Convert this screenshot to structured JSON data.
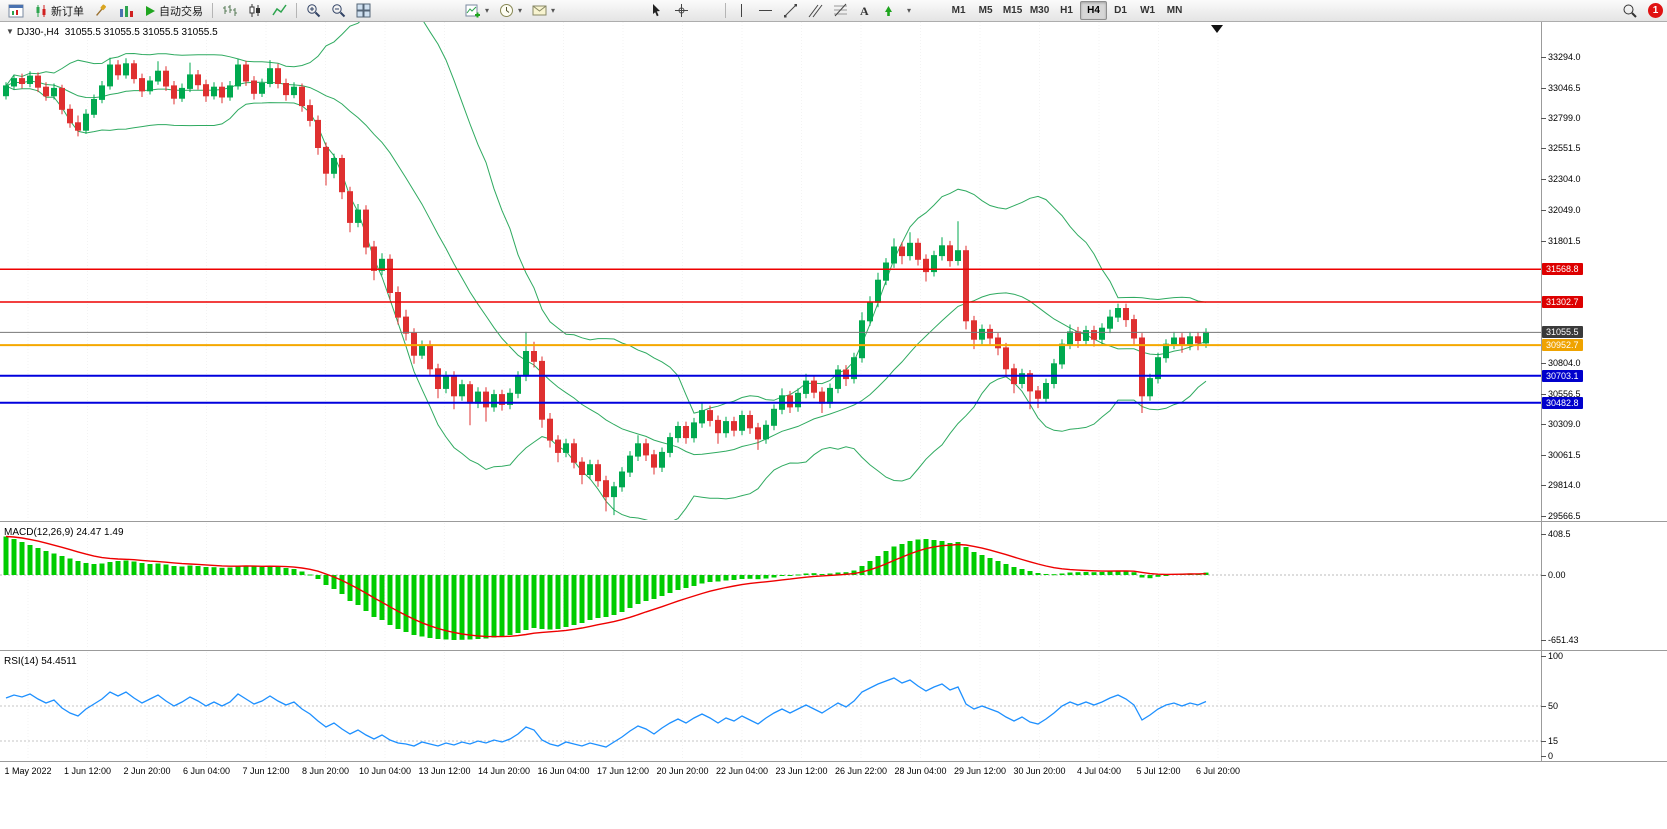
{
  "toolbar": {
    "new_order": "新订单",
    "auto_trading": "自动交易",
    "timeframes": [
      "M1",
      "M5",
      "M15",
      "M30",
      "H1",
      "H4",
      "D1",
      "W1",
      "MN"
    ],
    "active_timeframe": "H4",
    "notification_count": "1"
  },
  "chart": {
    "symbol_label": "DJ30-,H4",
    "ohlc_label": "31055.5 31055.5 31055.5 31055.5"
  },
  "price_axis": {
    "ticks": [
      {
        "label": "33294.0",
        "value": 33294.0
      },
      {
        "label": "33046.5",
        "value": 33046.5
      },
      {
        "label": "32799.0",
        "value": 32799.0
      },
      {
        "label": "32551.5",
        "value": 32551.5
      },
      {
        "label": "32304.0",
        "value": 32304.0
      },
      {
        "label": "32049.0",
        "value": 32049.0
      },
      {
        "label": "31801.5",
        "value": 31801.5
      },
      {
        "label": "30804.0",
        "value": 30804.0
      },
      {
        "label": "30556.5",
        "value": 30556.5
      },
      {
        "label": "30309.0",
        "value": 30309.0
      },
      {
        "label": "30061.5",
        "value": 30061.5
      },
      {
        "label": "29814.0",
        "value": 29814.0
      },
      {
        "label": "29566.5",
        "value": 29566.5
      }
    ],
    "badges": [
      {
        "label": "31568.8",
        "value": 31568.8,
        "color": "#dd0000"
      },
      {
        "label": "31302.7",
        "value": 31302.7,
        "color": "#dd0000"
      },
      {
        "label": "31055.5",
        "value": 31055.5,
        "color": "#3a3a3a"
      },
      {
        "label": "30952.7",
        "value": 30952.7,
        "color": "#efa300"
      },
      {
        "label": "30703.1",
        "value": 30703.1,
        "color": "#0000cc"
      },
      {
        "label": "30482.8",
        "value": 30482.8,
        "color": "#0000cc"
      }
    ]
  },
  "indicators": {
    "macd_label": "MACD(12,26,9)",
    "macd_values": "24.47 1.49",
    "macd_axis": [
      {
        "label": "408.5",
        "value": 408.5
      },
      {
        "label": "0.00",
        "value": 0
      },
      {
        "label": "-651.43",
        "value": -651.43
      }
    ],
    "rsi_label": "RSI(14)",
    "rsi_value": "54.4511",
    "rsi_axis": [
      {
        "label": "100",
        "value": 100
      },
      {
        "label": "50",
        "value": 50
      },
      {
        "label": "15",
        "value": 15
      },
      {
        "label": "0",
        "value": 0
      }
    ],
    "rsi_levels": [
      50,
      15
    ]
  },
  "time_axis": {
    "labels": [
      "1 May 2022",
      "1 Jun 12:00",
      "2 Jun 20:00",
      "6 Jun 04:00",
      "7 Jun 12:00",
      "8 Jun 20:00",
      "10 Jun 04:00",
      "13 Jun 12:00",
      "14 Jun 20:00",
      "16 Jun 04:00",
      "17 Jun 12:00",
      "20 Jun 20:00",
      "22 Jun 04:00",
      "23 Jun 12:00",
      "26 Jun 22:00",
      "28 Jun 04:00",
      "29 Jun 12:00",
      "30 Jun 20:00",
      "4 Jul 04:00",
      "5 Jul 12:00",
      "6 Jul 20:00"
    ]
  },
  "chart_data": {
    "type": "candlestick",
    "symbol": "DJ30-",
    "timeframe": "H4",
    "colors": {
      "up": "#00a94f",
      "down": "#df3030",
      "bollinger": "#2faa60",
      "macd_hist": "#00cc00",
      "macd_signal": "#ee0000",
      "rsi": "#1e90ff"
    },
    "h_lines": [
      {
        "name": "resistance-1",
        "price": 31568.8,
        "color": "#ee0000",
        "w": 1.5
      },
      {
        "name": "resistance-2",
        "price": 31302.7,
        "color": "#ee0000",
        "w": 1.5
      },
      {
        "name": "current-price",
        "price": 31055.5,
        "color": "#777777",
        "w": 1
      },
      {
        "name": "pivot",
        "price": 30952.7,
        "color": "#f5a800",
        "w": 2
      },
      {
        "name": "support-1",
        "price": 30703.1,
        "color": "#0000dd",
        "w": 2
      },
      {
        "name": "support-2",
        "price": 30482.8,
        "color": "#0000dd",
        "w": 2
      }
    ],
    "bollinger": {
      "period": 20,
      "deviation": 2
    },
    "candles": [
      [
        32980,
        33090,
        32950,
        33060
      ],
      [
        33060,
        33150,
        33030,
        33120
      ],
      [
        33120,
        33160,
        33040,
        33080
      ],
      [
        33080,
        33180,
        33050,
        33140
      ],
      [
        33140,
        33170,
        33010,
        33050
      ],
      [
        33050,
        33090,
        32940,
        32980
      ],
      [
        32980,
        33080,
        32950,
        33040
      ],
      [
        33040,
        33070,
        32830,
        32870
      ],
      [
        32870,
        32910,
        32720,
        32760
      ],
      [
        32760,
        32820,
        32650,
        32700
      ],
      [
        32700,
        32870,
        32670,
        32830
      ],
      [
        32830,
        32990,
        32800,
        32950
      ],
      [
        32950,
        33100,
        32920,
        33060
      ],
      [
        33060,
        33290,
        33030,
        33230
      ],
      [
        33230,
        33270,
        33110,
        33150
      ],
      [
        33150,
        33285,
        33120,
        33240
      ],
      [
        33240,
        33270,
        33080,
        33120
      ],
      [
        33120,
        33160,
        32970,
        33020
      ],
      [
        33020,
        33140,
        32990,
        33100
      ],
      [
        33100,
        33260,
        33070,
        33180
      ],
      [
        33180,
        33220,
        33020,
        33060
      ],
      [
        33060,
        33100,
        32910,
        32960
      ],
      [
        32960,
        33080,
        32930,
        33040
      ],
      [
        33040,
        33250,
        33010,
        33150
      ],
      [
        33150,
        33190,
        33030,
        33070
      ],
      [
        33070,
        33110,
        32930,
        32980
      ],
      [
        32980,
        33090,
        32950,
        33050
      ],
      [
        33050,
        33090,
        32920,
        32970
      ],
      [
        32970,
        33100,
        32940,
        33060
      ],
      [
        33060,
        33280,
        33030,
        33230
      ],
      [
        33230,
        33265,
        33060,
        33100
      ],
      [
        33100,
        33140,
        32950,
        33000
      ],
      [
        33000,
        33120,
        32970,
        33080
      ],
      [
        33080,
        33270,
        33050,
        33200
      ],
      [
        33200,
        33240,
        33040,
        33080
      ],
      [
        33080,
        33120,
        32940,
        32990
      ],
      [
        32990,
        33090,
        32960,
        33050
      ],
      [
        33050,
        33080,
        32850,
        32900
      ],
      [
        32900,
        32950,
        32730,
        32780
      ],
      [
        32780,
        32820,
        32500,
        32560
      ],
      [
        32560,
        32600,
        32250,
        32350
      ],
      [
        32350,
        32510,
        32310,
        32470
      ],
      [
        32470,
        32500,
        32140,
        32200
      ],
      [
        32200,
        32240,
        31870,
        31950
      ],
      [
        31950,
        32100,
        31910,
        32050
      ],
      [
        32050,
        32090,
        31690,
        31750
      ],
      [
        31750,
        31800,
        31480,
        31560
      ],
      [
        31560,
        31700,
        31520,
        31650
      ],
      [
        31650,
        31690,
        31320,
        31380
      ],
      [
        31380,
        31430,
        31120,
        31180
      ],
      [
        31180,
        31240,
        30990,
        31050
      ],
      [
        31050,
        31090,
        30800,
        30870
      ],
      [
        30870,
        30990,
        30840,
        30950
      ],
      [
        30950,
        30990,
        30710,
        30760
      ],
      [
        30760,
        30800,
        30520,
        30600
      ],
      [
        30600,
        30740,
        30560,
        30700
      ],
      [
        30700,
        30740,
        30430,
        30540
      ],
      [
        30540,
        30670,
        30500,
        30630
      ],
      [
        30630,
        30660,
        30300,
        30480
      ],
      [
        30480,
        30610,
        30440,
        30570
      ],
      [
        30570,
        30610,
        30330,
        30450
      ],
      [
        30450,
        30590,
        30410,
        30550
      ],
      [
        30550,
        30590,
        30420,
        30470
      ],
      [
        30470,
        30600,
        30430,
        30560
      ],
      [
        30560,
        30740,
        30520,
        30700
      ],
      [
        30700,
        31060,
        30660,
        30900
      ],
      [
        30900,
        30980,
        30770,
        30820
      ],
      [
        30820,
        30860,
        30280,
        30350
      ],
      [
        30350,
        30400,
        30120,
        30180
      ],
      [
        30180,
        30220,
        30000,
        30080
      ],
      [
        30080,
        30190,
        30040,
        30150
      ],
      [
        30150,
        30190,
        29950,
        30000
      ],
      [
        30000,
        30040,
        29820,
        29900
      ],
      [
        29900,
        30020,
        29860,
        29980
      ],
      [
        29980,
        30020,
        29800,
        29850
      ],
      [
        29850,
        29890,
        29600,
        29720
      ],
      [
        29720,
        29840,
        29570,
        29800
      ],
      [
        29800,
        29960,
        29760,
        29920
      ],
      [
        29920,
        30090,
        29880,
        30050
      ],
      [
        30050,
        30220,
        30010,
        30150
      ],
      [
        30150,
        30190,
        30010,
        30060
      ],
      [
        30060,
        30100,
        29900,
        29960
      ],
      [
        29960,
        30120,
        29920,
        30080
      ],
      [
        30080,
        30240,
        30040,
        30200
      ],
      [
        30200,
        30330,
        30160,
        30290
      ],
      [
        30290,
        30330,
        30150,
        30200
      ],
      [
        30200,
        30360,
        30160,
        30320
      ],
      [
        30320,
        30480,
        30280,
        30420
      ],
      [
        30420,
        30460,
        30290,
        30340
      ],
      [
        30340,
        30380,
        30150,
        30240
      ],
      [
        30240,
        30370,
        30200,
        30330
      ],
      [
        30330,
        30370,
        30210,
        30260
      ],
      [
        30260,
        30420,
        30220,
        30380
      ],
      [
        30380,
        30420,
        30230,
        30280
      ],
      [
        30280,
        30320,
        30100,
        30190
      ],
      [
        30190,
        30340,
        30150,
        30300
      ],
      [
        30300,
        30470,
        30260,
        30430
      ],
      [
        30430,
        30600,
        30390,
        30540
      ],
      [
        30540,
        30580,
        30400,
        30450
      ],
      [
        30450,
        30600,
        30410,
        30560
      ],
      [
        30560,
        30720,
        30520,
        30660
      ],
      [
        30660,
        30700,
        30520,
        30570
      ],
      [
        30570,
        30610,
        30400,
        30480
      ],
      [
        30480,
        30640,
        30440,
        30600
      ],
      [
        30600,
        30790,
        30560,
        30750
      ],
      [
        30750,
        30790,
        30620,
        30680
      ],
      [
        30680,
        30890,
        30640,
        30850
      ],
      [
        30850,
        31220,
        30810,
        31150
      ],
      [
        31150,
        31350,
        31110,
        31300
      ],
      [
        31300,
        31540,
        31260,
        31480
      ],
      [
        31480,
        31660,
        31440,
        31620
      ],
      [
        31620,
        31820,
        31580,
        31750
      ],
      [
        31750,
        31790,
        31610,
        31680
      ],
      [
        31680,
        31870,
        31640,
        31780
      ],
      [
        31780,
        31820,
        31600,
        31650
      ],
      [
        31650,
        31690,
        31470,
        31550
      ],
      [
        31550,
        31720,
        31510,
        31680
      ],
      [
        31680,
        31830,
        31640,
        31760
      ],
      [
        31760,
        31800,
        31590,
        31640
      ],
      [
        31640,
        31960,
        31600,
        31720
      ],
      [
        31720,
        31760,
        31080,
        31150
      ],
      [
        31150,
        31190,
        30920,
        31000
      ],
      [
        31000,
        31120,
        30960,
        31080
      ],
      [
        31080,
        31120,
        30960,
        31010
      ],
      [
        31010,
        31050,
        30870,
        30930
      ],
      [
        30930,
        30970,
        30690,
        30760
      ],
      [
        30760,
        30800,
        30560,
        30640
      ],
      [
        30640,
        30760,
        30600,
        30720
      ],
      [
        30720,
        30750,
        30430,
        30580
      ],
      [
        30580,
        30620,
        30440,
        30520
      ],
      [
        30520,
        30680,
        30480,
        30640
      ],
      [
        30640,
        30840,
        30600,
        30800
      ],
      [
        30800,
        31000,
        30760,
        30960
      ],
      [
        30960,
        31120,
        30920,
        31060
      ],
      [
        31060,
        31100,
        30930,
        30990
      ],
      [
        30990,
        31110,
        30950,
        31070
      ],
      [
        31070,
        31110,
        30940,
        31000
      ],
      [
        31000,
        31130,
        30960,
        31090
      ],
      [
        31090,
        31240,
        31050,
        31180
      ],
      [
        31180,
        31290,
        31140,
        31250
      ],
      [
        31250,
        31290,
        31100,
        31160
      ],
      [
        31160,
        31200,
        30950,
        31010
      ],
      [
        31010,
        31050,
        30400,
        30540
      ],
      [
        30540,
        30720,
        30500,
        30680
      ],
      [
        30680,
        30890,
        30640,
        30850
      ],
      [
        30850,
        31000,
        30810,
        30960
      ],
      [
        30960,
        31060,
        30920,
        31010
      ],
      [
        31010,
        31050,
        30890,
        30950
      ],
      [
        30950,
        31060,
        30910,
        31020
      ],
      [
        31020,
        31060,
        30910,
        30970
      ],
      [
        30970,
        31090,
        30930,
        31055.5
      ]
    ],
    "macd_hist": [
      385,
      360,
      330,
      300,
      270,
      240,
      215,
      190,
      165,
      140,
      120,
      110,
      115,
      130,
      140,
      145,
      135,
      120,
      110,
      115,
      105,
      90,
      85,
      95,
      90,
      80,
      78,
      72,
      75,
      90,
      95,
      85,
      80,
      90,
      85,
      70,
      60,
      35,
      5,
      -40,
      -100,
      -140,
      -190,
      -260,
      -300,
      -360,
      -420,
      -450,
      -500,
      -540,
      -570,
      -600,
      -615,
      -630,
      -640,
      -645,
      -650,
      -648,
      -645,
      -640,
      -635,
      -625,
      -615,
      -600,
      -580,
      -550,
      -530,
      -540,
      -545,
      -540,
      -520,
      -500,
      -480,
      -450,
      -430,
      -420,
      -400,
      -370,
      -330,
      -290,
      -260,
      -240,
      -210,
      -180,
      -150,
      -130,
      -110,
      -85,
      -70,
      -65,
      -55,
      -50,
      -40,
      -38,
      -42,
      -35,
      -25,
      -10,
      -5,
      5,
      15,
      18,
      10,
      15,
      25,
      28,
      45,
      90,
      140,
      190,
      240,
      285,
      310,
      340,
      355,
      360,
      350,
      340,
      320,
      330,
      280,
      230,
      200,
      170,
      140,
      110,
      80,
      60,
      40,
      20,
      10,
      8,
      15,
      25,
      28,
      30,
      28,
      30,
      38,
      45,
      42,
      28,
      -25,
      -32,
      -18,
      0,
      10,
      12,
      16,
      15,
      24.47
    ],
    "rsi": [
      58,
      61,
      59,
      62,
      57,
      53,
      56,
      48,
      43,
      40,
      47,
      52,
      57,
      64,
      60,
      64,
      58,
      53,
      57,
      61,
      55,
      50,
      54,
      59,
      55,
      50,
      54,
      50,
      54,
      62,
      57,
      52,
      55,
      60,
      55,
      51,
      54,
      47,
      42,
      35,
      29,
      33,
      27,
      22,
      26,
      21,
      17,
      21,
      16,
      13,
      12,
      10,
      14,
      12,
      10,
      13,
      11,
      14,
      12,
      15,
      13,
      16,
      14,
      17,
      22,
      29,
      26,
      16,
      12,
      10,
      14,
      12,
      10,
      13,
      11,
      9,
      14,
      19,
      25,
      30,
      27,
      22,
      28,
      33,
      37,
      33,
      38,
      42,
      38,
      33,
      38,
      35,
      40,
      36,
      32,
      38,
      43,
      47,
      43,
      47,
      51,
      47,
      43,
      48,
      53,
      49,
      55,
      64,
      68,
      72,
      75,
      78,
      73,
      76,
      70,
      65,
      69,
      72,
      66,
      69,
      52,
      47,
      50,
      47,
      44,
      39,
      35,
      39,
      34,
      32,
      37,
      43,
      50,
      54,
      51,
      54,
      51,
      54,
      58,
      61,
      57,
      51,
      36,
      41,
      47,
      51,
      53,
      50,
      53,
      51,
      54.45
    ]
  }
}
